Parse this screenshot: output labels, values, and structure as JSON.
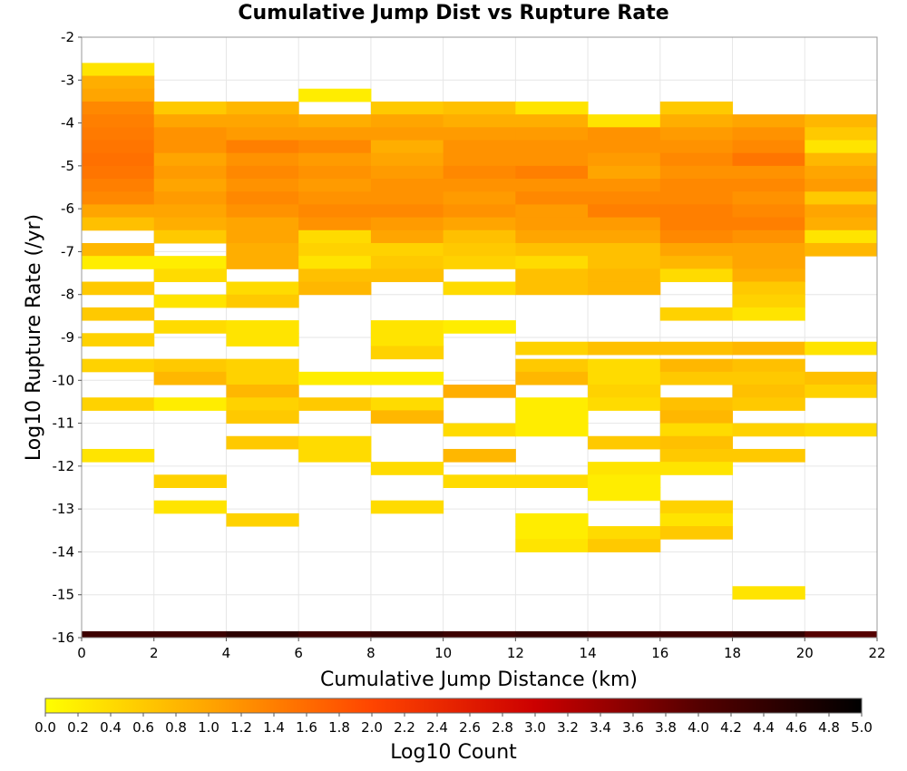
{
  "chart_data": {
    "type": "heatmap",
    "title": "Cumulative Jump Dist vs Rupture Rate",
    "xlabel": "Cumulative Jump Distance (km)",
    "ylabel": "Log10 Rupture Rate (/yr)",
    "xlim": [
      0,
      22
    ],
    "ylim": [
      -16,
      -2
    ],
    "x_ticks": [
      "0",
      "2",
      "4",
      "6",
      "8",
      "10",
      "12",
      "14",
      "16",
      "18",
      "20",
      "22"
    ],
    "y_ticks": [
      "-2",
      "-3",
      "-4",
      "-5",
      "-6",
      "-7",
      "-8",
      "-9",
      "-10",
      "-11",
      "-12",
      "-13",
      "-14",
      "-15",
      "-16"
    ],
    "x_bin_width": 2,
    "y_bin_height": 0.3,
    "colorbar": {
      "label": "Log10 Count",
      "range": [
        0,
        5
      ],
      "ticks": [
        "0.0",
        "0.2",
        "0.4",
        "0.6",
        "0.8",
        "1.0",
        "1.2",
        "1.4",
        "1.6",
        "1.8",
        "2.0",
        "2.2",
        "2.4",
        "2.6",
        "2.8",
        "3.0",
        "3.2",
        "3.4",
        "3.6",
        "3.8",
        "4.0",
        "4.2",
        "4.4",
        "4.6",
        "4.8",
        "5.0"
      ],
      "colors": [
        "#ffff00",
        "#ffa500",
        "#ff4500",
        "#cc0000",
        "#550000",
        "#000000"
      ]
    },
    "cells": [
      [
        0,
        -2.75,
        0.3
      ],
      [
        0,
        -3.05,
        0.9
      ],
      [
        0,
        -3.35,
        1.0
      ],
      [
        0,
        -3.65,
        1.3
      ],
      [
        0,
        -3.95,
        1.4
      ],
      [
        0,
        -4.25,
        1.45
      ],
      [
        0,
        -4.55,
        1.5
      ],
      [
        0,
        -4.85,
        1.55
      ],
      [
        0,
        -5.15,
        1.5
      ],
      [
        0,
        -5.45,
        1.4
      ],
      [
        0,
        -5.75,
        1.3
      ],
      [
        0,
        -6.05,
        1.0
      ],
      [
        0,
        -6.35,
        0.7
      ],
      [
        0,
        -6.95,
        0.8
      ],
      [
        0,
        -7.25,
        0.2
      ],
      [
        0,
        -7.85,
        0.6
      ],
      [
        0,
        -8.45,
        0.6
      ],
      [
        0,
        -9.05,
        0.5
      ],
      [
        0,
        -9.65,
        0.5
      ],
      [
        0,
        -10.55,
        0.5
      ],
      [
        0,
        -11.75,
        0.3
      ],
      [
        2,
        -3.65,
        0.6
      ],
      [
        2,
        -3.95,
        1.0
      ],
      [
        2,
        -4.25,
        1.2
      ],
      [
        2,
        -4.55,
        1.2
      ],
      [
        2,
        -4.85,
        1.0
      ],
      [
        2,
        -5.15,
        1.1
      ],
      [
        2,
        -5.45,
        1.0
      ],
      [
        2,
        -5.75,
        1.1
      ],
      [
        2,
        -6.05,
        1.0
      ],
      [
        2,
        -6.35,
        0.9
      ],
      [
        2,
        -6.65,
        0.6
      ],
      [
        2,
        -7.25,
        0.2
      ],
      [
        2,
        -7.55,
        0.4
      ],
      [
        2,
        -8.15,
        0.3
      ],
      [
        2,
        -8.75,
        0.4
      ],
      [
        2,
        -9.65,
        0.6
      ],
      [
        2,
        -9.95,
        0.8
      ],
      [
        2,
        -10.55,
        0.2
      ],
      [
        2,
        -12.35,
        0.5
      ],
      [
        2,
        -12.95,
        0.3
      ],
      [
        4,
        -3.65,
        0.8
      ],
      [
        4,
        -3.95,
        1.0
      ],
      [
        4,
        -4.25,
        1.1
      ],
      [
        4,
        -4.55,
        1.4
      ],
      [
        4,
        -4.85,
        1.2
      ],
      [
        4,
        -5.15,
        1.3
      ],
      [
        4,
        -5.45,
        1.2
      ],
      [
        4,
        -5.75,
        1.3
      ],
      [
        4,
        -6.05,
        1.2
      ],
      [
        4,
        -6.35,
        1.0
      ],
      [
        4,
        -6.65,
        1.0
      ],
      [
        4,
        -6.95,
        0.9
      ],
      [
        4,
        -7.25,
        0.9
      ],
      [
        4,
        -7.85,
        0.4
      ],
      [
        4,
        -8.15,
        0.6
      ],
      [
        4,
        -8.75,
        0.3
      ],
      [
        4,
        -9.05,
        0.3
      ],
      [
        4,
        -9.65,
        0.5
      ],
      [
        4,
        -9.95,
        0.5
      ],
      [
        4,
        -10.25,
        0.8
      ],
      [
        4,
        -10.55,
        0.5
      ],
      [
        4,
        -10.85,
        0.6
      ],
      [
        4,
        -11.45,
        0.6
      ],
      [
        4,
        -13.25,
        0.5
      ],
      [
        6,
        -3.35,
        0.2
      ],
      [
        6,
        -3.95,
        0.9
      ],
      [
        6,
        -4.25,
        1.1
      ],
      [
        6,
        -4.55,
        1.3
      ],
      [
        6,
        -4.85,
        1.1
      ],
      [
        6,
        -5.15,
        1.2
      ],
      [
        6,
        -5.45,
        1.1
      ],
      [
        6,
        -5.75,
        1.2
      ],
      [
        6,
        -6.05,
        1.3
      ],
      [
        6,
        -6.35,
        1.2
      ],
      [
        6,
        -6.65,
        0.4
      ],
      [
        6,
        -6.95,
        0.5
      ],
      [
        6,
        -7.25,
        0.3
      ],
      [
        6,
        -7.55,
        0.7
      ],
      [
        6,
        -7.85,
        0.8
      ],
      [
        6,
        -9.95,
        0.2
      ],
      [
        6,
        -10.55,
        0.6
      ],
      [
        6,
        -11.45,
        0.4
      ],
      [
        6,
        -11.75,
        0.4
      ],
      [
        8,
        -3.65,
        0.6
      ],
      [
        8,
        -3.95,
        1.0
      ],
      [
        8,
        -4.25,
        1.1
      ],
      [
        8,
        -4.55,
        0.9
      ],
      [
        8,
        -4.85,
        1.0
      ],
      [
        8,
        -5.15,
        1.1
      ],
      [
        8,
        -5.45,
        1.2
      ],
      [
        8,
        -5.75,
        1.2
      ],
      [
        8,
        -6.05,
        1.3
      ],
      [
        8,
        -6.35,
        1.1
      ],
      [
        8,
        -6.65,
        1.0
      ],
      [
        8,
        -6.95,
        0.5
      ],
      [
        8,
        -7.25,
        0.6
      ],
      [
        8,
        -7.55,
        0.7
      ],
      [
        8,
        -8.75,
        0.3
      ],
      [
        8,
        -9.05,
        0.3
      ],
      [
        8,
        -9.35,
        0.5
      ],
      [
        8,
        -9.95,
        0.2
      ],
      [
        8,
        -10.55,
        0.4
      ],
      [
        8,
        -10.85,
        0.8
      ],
      [
        8,
        -12.05,
        0.4
      ],
      [
        8,
        -12.95,
        0.4
      ],
      [
        10,
        -3.65,
        0.7
      ],
      [
        10,
        -3.95,
        0.9
      ],
      [
        10,
        -4.25,
        1.1
      ],
      [
        10,
        -4.55,
        1.2
      ],
      [
        10,
        -4.85,
        1.2
      ],
      [
        10,
        -5.15,
        1.3
      ],
      [
        10,
        -5.45,
        1.2
      ],
      [
        10,
        -5.75,
        1.1
      ],
      [
        10,
        -6.05,
        1.2
      ],
      [
        10,
        -6.35,
        1.0
      ],
      [
        10,
        -6.65,
        0.7
      ],
      [
        10,
        -6.95,
        0.6
      ],
      [
        10,
        -7.25,
        0.5
      ],
      [
        10,
        -7.85,
        0.4
      ],
      [
        10,
        -8.75,
        0.2
      ],
      [
        10,
        -10.25,
        0.9
      ],
      [
        10,
        -11.15,
        0.4
      ],
      [
        10,
        -11.75,
        0.8
      ],
      [
        10,
        -12.35,
        0.4
      ],
      [
        12,
        -3.65,
        0.3
      ],
      [
        12,
        -3.95,
        0.9
      ],
      [
        12,
        -4.25,
        1.1
      ],
      [
        12,
        -4.55,
        1.2
      ],
      [
        12,
        -4.85,
        1.2
      ],
      [
        12,
        -5.15,
        1.4
      ],
      [
        12,
        -5.45,
        1.2
      ],
      [
        12,
        -5.75,
        1.3
      ],
      [
        12,
        -6.05,
        1.1
      ],
      [
        12,
        -6.35,
        1.1
      ],
      [
        12,
        -6.65,
        1.0
      ],
      [
        12,
        -6.95,
        0.7
      ],
      [
        12,
        -7.25,
        0.4
      ],
      [
        12,
        -7.55,
        0.7
      ],
      [
        12,
        -7.85,
        0.7
      ],
      [
        12,
        -9.25,
        0.5
      ],
      [
        12,
        -9.65,
        0.6
      ],
      [
        12,
        -9.95,
        0.8
      ],
      [
        12,
        -10.55,
        0.2
      ],
      [
        12,
        -10.85,
        0.2
      ],
      [
        12,
        -11.15,
        0.2
      ],
      [
        12,
        -12.35,
        0.4
      ],
      [
        12,
        -13.25,
        0.2
      ],
      [
        12,
        -13.55,
        0.2
      ],
      [
        12,
        -13.85,
        0.3
      ],
      [
        14,
        -3.95,
        0.3
      ],
      [
        14,
        -4.25,
        1.2
      ],
      [
        14,
        -4.55,
        1.2
      ],
      [
        14,
        -4.85,
        1.1
      ],
      [
        14,
        -5.15,
        1.0
      ],
      [
        14,
        -5.45,
        1.2
      ],
      [
        14,
        -5.75,
        1.3
      ],
      [
        14,
        -6.05,
        1.4
      ],
      [
        14,
        -6.35,
        1.1
      ],
      [
        14,
        -6.65,
        1.0
      ],
      [
        14,
        -6.95,
        0.7
      ],
      [
        14,
        -7.25,
        0.7
      ],
      [
        14,
        -7.55,
        0.8
      ],
      [
        14,
        -7.85,
        0.8
      ],
      [
        14,
        -9.25,
        0.7
      ],
      [
        14,
        -9.65,
        0.4
      ],
      [
        14,
        -9.95,
        0.4
      ],
      [
        14,
        -10.25,
        0.5
      ],
      [
        14,
        -10.55,
        0.4
      ],
      [
        14,
        -11.45,
        0.6
      ],
      [
        14,
        -12.05,
        0.3
      ],
      [
        14,
        -12.35,
        0.2
      ],
      [
        14,
        -12.65,
        0.2
      ],
      [
        14,
        -13.55,
        0.4
      ],
      [
        14,
        -13.85,
        0.6
      ],
      [
        16,
        -3.65,
        0.6
      ],
      [
        16,
        -3.95,
        0.9
      ],
      [
        16,
        -4.25,
        1.1
      ],
      [
        16,
        -4.55,
        1.2
      ],
      [
        16,
        -4.85,
        1.3
      ],
      [
        16,
        -5.15,
        1.2
      ],
      [
        16,
        -5.45,
        1.3
      ],
      [
        16,
        -5.75,
        1.3
      ],
      [
        16,
        -6.05,
        1.4
      ],
      [
        16,
        -6.35,
        1.4
      ],
      [
        16,
        -6.65,
        1.3
      ],
      [
        16,
        -6.95,
        1.0
      ],
      [
        16,
        -7.25,
        0.8
      ],
      [
        16,
        -7.55,
        0.4
      ],
      [
        16,
        -8.45,
        0.5
      ],
      [
        16,
        -9.25,
        0.7
      ],
      [
        16,
        -9.65,
        0.8
      ],
      [
        16,
        -9.95,
        0.6
      ],
      [
        16,
        -10.55,
        0.7
      ],
      [
        16,
        -10.85,
        0.8
      ],
      [
        16,
        -11.15,
        0.4
      ],
      [
        16,
        -11.45,
        0.7
      ],
      [
        16,
        -11.75,
        0.6
      ],
      [
        16,
        -12.05,
        0.3
      ],
      [
        16,
        -12.95,
        0.5
      ],
      [
        16,
        -13.25,
        0.3
      ],
      [
        16,
        -13.55,
        0.6
      ],
      [
        18,
        -3.95,
        1.0
      ],
      [
        18,
        -4.25,
        1.2
      ],
      [
        18,
        -4.55,
        1.3
      ],
      [
        18,
        -4.85,
        1.5
      ],
      [
        18,
        -5.15,
        1.2
      ],
      [
        18,
        -5.45,
        1.3
      ],
      [
        18,
        -5.75,
        1.2
      ],
      [
        18,
        -6.05,
        1.3
      ],
      [
        18,
        -6.35,
        1.4
      ],
      [
        18,
        -6.65,
        1.2
      ],
      [
        18,
        -6.95,
        1.0
      ],
      [
        18,
        -7.25,
        1.0
      ],
      [
        18,
        -7.55,
        0.9
      ],
      [
        18,
        -7.85,
        0.6
      ],
      [
        18,
        -8.15,
        0.5
      ],
      [
        18,
        -8.45,
        0.3
      ],
      [
        18,
        -9.25,
        0.8
      ],
      [
        18,
        -9.65,
        0.7
      ],
      [
        18,
        -9.95,
        0.6
      ],
      [
        18,
        -10.25,
        0.7
      ],
      [
        18,
        -10.55,
        0.6
      ],
      [
        18,
        -11.15,
        0.5
      ],
      [
        18,
        -11.75,
        0.6
      ],
      [
        18,
        -14.95,
        0.3
      ],
      [
        20,
        -3.95,
        0.8
      ],
      [
        20,
        -4.25,
        0.6
      ],
      [
        20,
        -4.55,
        0.3
      ],
      [
        20,
        -4.85,
        0.8
      ],
      [
        20,
        -5.15,
        1.0
      ],
      [
        20,
        -5.45,
        1.1
      ],
      [
        20,
        -5.75,
        0.6
      ],
      [
        20,
        -6.05,
        1.0
      ],
      [
        20,
        -6.35,
        0.9
      ],
      [
        20,
        -6.65,
        0.3
      ],
      [
        20,
        -6.95,
        0.8
      ],
      [
        20,
        -9.25,
        0.3
      ],
      [
        20,
        -9.95,
        0.7
      ],
      [
        20,
        -10.25,
        0.5
      ],
      [
        20,
        -11.15,
        0.4
      ]
    ],
    "floor_strip": {
      "y_range": [
        -16,
        -15.85
      ],
      "values": [
        4.3,
        4.3,
        4.5,
        4.3,
        4.4,
        4.3,
        4.4,
        4.3,
        4.3,
        4.4,
        4.0
      ]
    }
  }
}
